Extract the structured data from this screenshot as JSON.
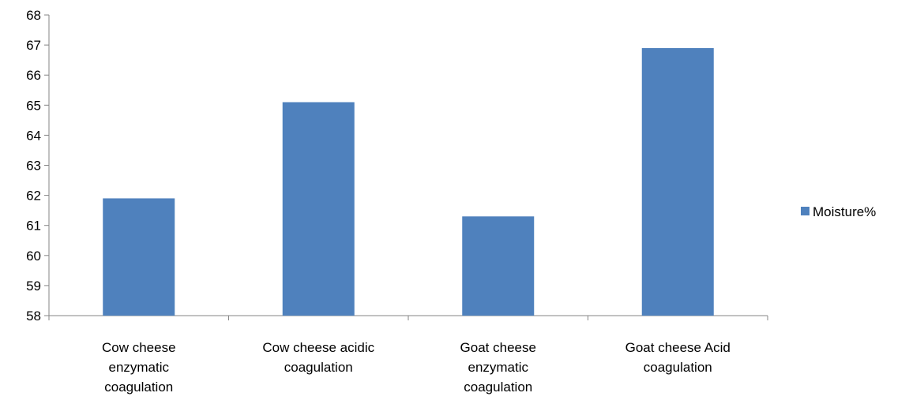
{
  "chart_data": {
    "type": "bar",
    "categories": [
      [
        "Cow cheese",
        "enzymatic",
        "coagulation"
      ],
      [
        "Cow cheese acidic",
        "coagulation"
      ],
      [
        "Goat cheese",
        "enzymatic",
        "coagulation"
      ],
      [
        "Goat cheese Acid",
        "coagulation"
      ]
    ],
    "series": [
      {
        "name": "Moisture%",
        "values": [
          61.9,
          65.1,
          61.3,
          66.9
        ],
        "color": "#4F81BD"
      }
    ],
    "ylim": [
      58,
      68
    ],
    "yticks": [
      58,
      59,
      60,
      61,
      62,
      63,
      64,
      65,
      66,
      67,
      68
    ],
    "title": "",
    "xlabel": "",
    "ylabel": "",
    "grid": false,
    "legend_position": "right"
  }
}
